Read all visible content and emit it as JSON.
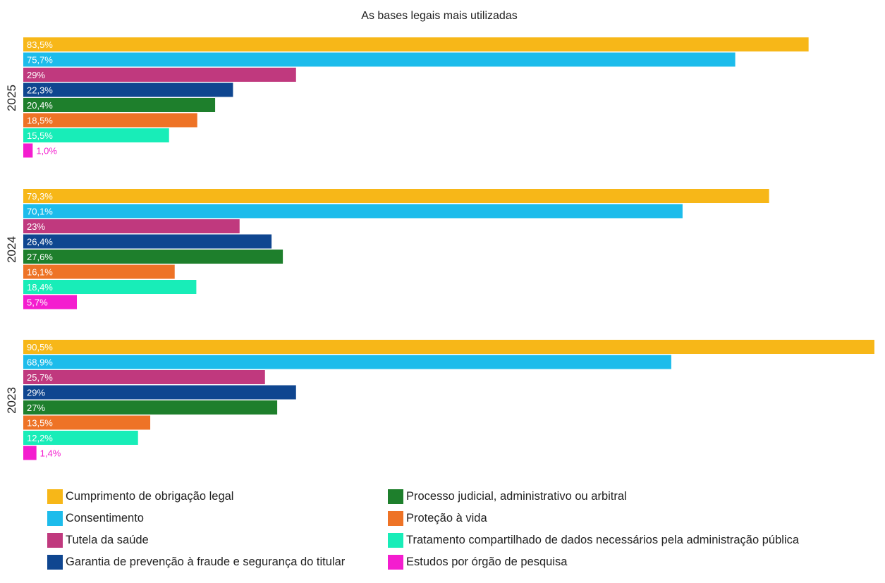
{
  "chart_data": {
    "type": "bar",
    "orientation": "horizontal",
    "title": "As bases legais mais utilizadas",
    "xlim": [
      0,
      90.5
    ],
    "grid": false,
    "legend_position": "bottom",
    "groups": [
      {
        "label": "2025",
        "values": [
          83.5,
          75.7,
          29,
          22.3,
          20.4,
          18.5,
          15.5,
          1.0
        ],
        "labels": [
          "83,5%",
          "75,7%",
          "29%",
          "22,3%",
          "20,4%",
          "18,5%",
          "15,5%",
          "1,0%"
        ]
      },
      {
        "label": "2024",
        "values": [
          79.3,
          70.1,
          23,
          26.4,
          27.6,
          16.1,
          18.4,
          5.7
        ],
        "labels": [
          "79,3%",
          "70,1%",
          "23%",
          "26,4%",
          "27,6%",
          "16,1%",
          "18,4%",
          "5,7%"
        ]
      },
      {
        "label": "2023",
        "values": [
          90.5,
          68.9,
          25.7,
          29,
          27,
          13.5,
          12.2,
          1.4
        ],
        "labels": [
          "90,5%",
          "68,9%",
          "25,7%",
          "29%",
          "27%",
          "13,5%",
          "12,2%",
          "1,4%"
        ]
      }
    ],
    "series": [
      {
        "name": "Cumprimento de obrigação legal",
        "color": "#F7B718"
      },
      {
        "name": "Consentimento",
        "color": "#1DBCEB"
      },
      {
        "name": "Tutela da saúde",
        "color": "#C0397E"
      },
      {
        "name": "Garantia de prevenção à fraude e segurança do titular",
        "color": "#0F4690"
      },
      {
        "name": "Processo judicial, administrativo ou arbitral",
        "color": "#1E7F2C"
      },
      {
        "name": "Proteção à vida",
        "color": "#EE7326"
      },
      {
        "name": "Tratamento compartilhado de dados necessários pela administração pública",
        "color": "#18EDB8"
      },
      {
        "name": "Estudos por órgão de pesquisa",
        "color": "#F41DCF"
      }
    ]
  }
}
